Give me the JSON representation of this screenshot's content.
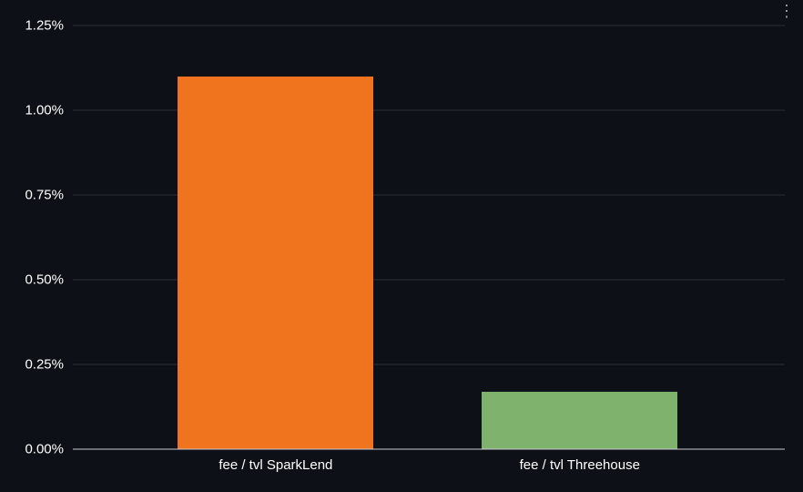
{
  "panel": {
    "menu_icon": "⋮"
  },
  "chart_data": {
    "type": "bar",
    "title": "",
    "xlabel": "",
    "ylabel": "",
    "categories": [
      "fee / tvl SparkLend",
      "fee / tvl Threehouse"
    ],
    "values": [
      1.1,
      0.17
    ],
    "unit": "%",
    "ylim": [
      0,
      1.25
    ],
    "yticks": [
      0,
      0.25,
      0.5,
      0.75,
      1.0,
      1.25
    ],
    "ytick_labels": [
      "0.00%",
      "0.25%",
      "0.50%",
      "0.75%",
      "1.00%",
      "1.25%"
    ],
    "grid": true,
    "legend": "none",
    "bar_colors": [
      "#F0741E",
      "#7EB26D"
    ],
    "background_color": "#0D1117",
    "grid_color": "rgba(204,204,220,0.16)",
    "axis_line_color": "#C9CBD1",
    "text_color": "#FFFFFF"
  }
}
